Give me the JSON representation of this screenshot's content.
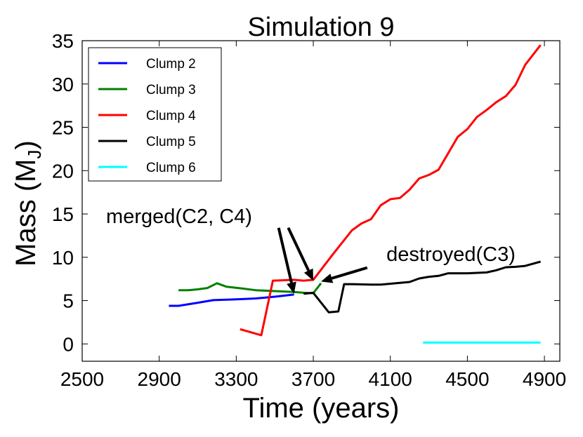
{
  "chart_data": {
    "type": "line",
    "title": "Simulation 9",
    "xlabel": "Time (years)",
    "ylabel_main": "Mass (M",
    "ylabel_sub": "J",
    "ylabel_close": ")",
    "xlim": [
      2500,
      4980
    ],
    "ylim": [
      -2,
      35
    ],
    "xticks": [
      2500,
      2900,
      3300,
      3700,
      4100,
      4500,
      4900
    ],
    "yticks": [
      0,
      5,
      10,
      15,
      20,
      25,
      30,
      35
    ],
    "legend_position": "top-left",
    "series": [
      {
        "name": "Clump 2",
        "color": "#0000ff",
        "points": [
          [
            2950,
            4.4
          ],
          [
            3000,
            4.4
          ],
          [
            3100,
            4.75
          ],
          [
            3180,
            5.05
          ],
          [
            3300,
            5.15
          ],
          [
            3400,
            5.25
          ],
          [
            3500,
            5.45
          ],
          [
            3600,
            5.7
          ]
        ]
      },
      {
        "name": "Clump 3",
        "color": "#008000",
        "points": [
          [
            3000,
            6.2
          ],
          [
            3050,
            6.2
          ],
          [
            3100,
            6.3
          ],
          [
            3150,
            6.45
          ],
          [
            3200,
            7.0
          ],
          [
            3250,
            6.6
          ],
          [
            3330,
            6.4
          ],
          [
            3400,
            6.2
          ],
          [
            3500,
            6.1
          ],
          [
            3600,
            6.0
          ],
          [
            3650,
            5.9
          ],
          [
            3700,
            5.85
          ],
          [
            3740,
            7.0
          ]
        ]
      },
      {
        "name": "Clump 4",
        "color": "#ff0000",
        "points": [
          [
            3320,
            1.7
          ],
          [
            3430,
            1.0
          ],
          [
            3490,
            7.3
          ],
          [
            3550,
            7.35
          ],
          [
            3600,
            7.4
          ],
          [
            3650,
            7.3
          ],
          [
            3700,
            7.4
          ],
          [
            3800,
            10.3
          ],
          [
            3900,
            13.1
          ],
          [
            3950,
            13.9
          ],
          [
            4000,
            14.4
          ],
          [
            4050,
            16.0
          ],
          [
            4100,
            16.7
          ],
          [
            4150,
            16.85
          ],
          [
            4200,
            17.8
          ],
          [
            4250,
            19.1
          ],
          [
            4300,
            19.5
          ],
          [
            4350,
            20.1
          ],
          [
            4400,
            22.0
          ],
          [
            4450,
            23.9
          ],
          [
            4500,
            24.8
          ],
          [
            4550,
            26.2
          ],
          [
            4600,
            27.0
          ],
          [
            4650,
            27.9
          ],
          [
            4700,
            28.6
          ],
          [
            4750,
            29.9
          ],
          [
            4800,
            32.2
          ],
          [
            4880,
            34.5
          ]
        ]
      },
      {
        "name": "Clump 5",
        "color": "#000000",
        "points": [
          [
            3650,
            5.8
          ],
          [
            3700,
            5.9
          ],
          [
            3780,
            3.65
          ],
          [
            3830,
            3.75
          ],
          [
            3860,
            6.9
          ],
          [
            3900,
            6.9
          ],
          [
            4000,
            6.85
          ],
          [
            4050,
            6.85
          ],
          [
            4100,
            6.95
          ],
          [
            4150,
            7.05
          ],
          [
            4200,
            7.15
          ],
          [
            4250,
            7.55
          ],
          [
            4300,
            7.75
          ],
          [
            4350,
            7.85
          ],
          [
            4400,
            8.15
          ],
          [
            4450,
            8.15
          ],
          [
            4500,
            8.15
          ],
          [
            4550,
            8.2
          ],
          [
            4600,
            8.25
          ],
          [
            4650,
            8.5
          ],
          [
            4700,
            8.85
          ],
          [
            4750,
            8.9
          ],
          [
            4800,
            9.0
          ],
          [
            4880,
            9.5
          ]
        ]
      },
      {
        "name": "Clump 6",
        "color": "#00ffff",
        "points": [
          [
            4270,
            0.15
          ],
          [
            4880,
            0.15
          ]
        ]
      }
    ],
    "annotations": [
      {
        "text": "merged(C2, C4)",
        "arrow_tip": [
          [
            3600,
            5.8
          ],
          [
            3700,
            7.3
          ]
        ],
        "arrow_tail": [
          [
            3520,
            13.4
          ],
          [
            3570,
            13.4
          ]
        ]
      },
      {
        "text": "destroyed(C3)",
        "arrow_tip": [
          [
            3740,
            7.2
          ]
        ],
        "arrow_tail": [
          [
            3980,
            8.8
          ]
        ]
      }
    ]
  }
}
